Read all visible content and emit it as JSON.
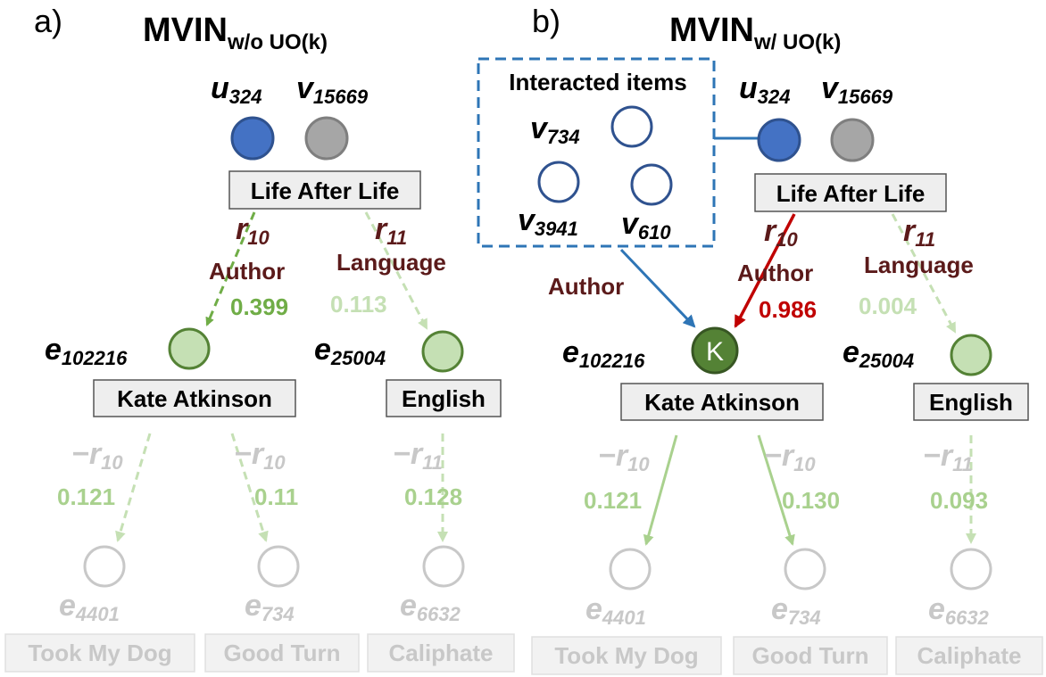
{
  "panel_a": {
    "letter": "a)",
    "title_main": "MVIN",
    "title_sub": "w/o UO(k)",
    "user": {
      "letter": "u",
      "sub": "324"
    },
    "item": {
      "letter": "v",
      "sub": "15669"
    },
    "book_label": "Life After Life",
    "rel_author": {
      "letter": "r",
      "sub": "10",
      "name": "Author",
      "weight": "0.399"
    },
    "rel_language": {
      "letter": "r",
      "sub": "11",
      "name": "Language",
      "weight": "0.113"
    },
    "entity_author": {
      "letter": "e",
      "sub": "102216",
      "label": "Kate Atkinson"
    },
    "entity_language": {
      "letter": "e",
      "sub": "25004",
      "label": "English"
    },
    "lower": [
      {
        "rel": "−r",
        "rel_sub": "10",
        "weight": "0.121",
        "e": "e",
        "e_sub": "4401",
        "label": "Took My Dog"
      },
      {
        "rel": "−r",
        "rel_sub": "10",
        "weight": "0.11",
        "e": "e",
        "e_sub": "734",
        "label": "Good Turn"
      },
      {
        "rel": "−r",
        "rel_sub": "11",
        "weight": "0.128",
        "e": "e",
        "e_sub": "6632",
        "label": "Caliphate"
      }
    ]
  },
  "panel_b": {
    "letter": "b)",
    "title_main": "MVIN",
    "title_sub": "w/ UO(k)",
    "interacted_title": "Interacted items",
    "interacted": [
      {
        "letter": "v",
        "sub": "734"
      },
      {
        "letter": "v",
        "sub": "3941"
      },
      {
        "letter": "v",
        "sub": "610"
      }
    ],
    "interacted_relation": "Author",
    "user": {
      "letter": "u",
      "sub": "324"
    },
    "item": {
      "letter": "v",
      "sub": "15669"
    },
    "book_label": "Life After Life",
    "rel_author": {
      "letter": "r",
      "sub": "10",
      "name": "Author",
      "weight": "0.986"
    },
    "rel_language": {
      "letter": "r",
      "sub": "11",
      "name": "Language",
      "weight": "0.004"
    },
    "entity_author": {
      "letter": "e",
      "sub": "102216",
      "label": "Kate Atkinson",
      "mark": "K"
    },
    "entity_language": {
      "letter": "e",
      "sub": "25004",
      "label": "English"
    },
    "lower": [
      {
        "rel": "−r",
        "rel_sub": "10",
        "weight": "0.121",
        "e": "e",
        "e_sub": "4401",
        "label": "Took My Dog"
      },
      {
        "rel": "−r",
        "rel_sub": "10",
        "weight": "0.130",
        "e": "e",
        "e_sub": "734",
        "label": "Good Turn"
      },
      {
        "rel": "−r",
        "rel_sub": "11",
        "weight": "0.093",
        "e": "e",
        "e_sub": "6632",
        "label": "Caliphate"
      }
    ]
  },
  "colors": {
    "user_blue": "#4472c4",
    "item_gray": "#a6a6a6",
    "entity_green": "#c5e0b4",
    "entity_green_stroke": "#548235",
    "dark_green": "#548235",
    "weight_green": "#70ad47",
    "faded_green": "#c5e0b4",
    "faded_gray": "#c8c8c8",
    "relation_maroon": "#5b1a1a",
    "dashed_blue": "#2e75b6",
    "arrow_red": "#c00000"
  }
}
